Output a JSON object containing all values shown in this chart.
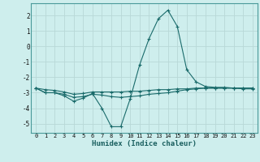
{
  "xlabel": "Humidex (Indice chaleur)",
  "bg_color": "#ceeeed",
  "grid_color": "#b8d8d7",
  "line_color": "#1a6b6b",
  "x_values": [
    0,
    1,
    2,
    3,
    4,
    5,
    6,
    7,
    8,
    9,
    10,
    11,
    12,
    13,
    14,
    15,
    16,
    17,
    18,
    19,
    20,
    21,
    22,
    23
  ],
  "series1": [
    -2.7,
    -3.0,
    -3.0,
    -3.2,
    -3.55,
    -3.35,
    -3.05,
    -4.0,
    -5.2,
    -5.2,
    -3.4,
    -1.2,
    0.5,
    1.8,
    2.35,
    1.3,
    -1.5,
    -2.3,
    -2.6,
    -2.65,
    -2.65,
    -2.7,
    -2.75,
    -2.75
  ],
  "series2": [
    -2.7,
    -3.0,
    -3.0,
    -3.1,
    -3.3,
    -3.25,
    -3.1,
    -3.15,
    -3.25,
    -3.3,
    -3.25,
    -3.2,
    -3.1,
    -3.05,
    -3.0,
    -2.9,
    -2.8,
    -2.75,
    -2.7,
    -2.7,
    -2.7,
    -2.7,
    -2.7,
    -2.7
  ],
  "series3": [
    -2.7,
    -2.8,
    -2.85,
    -2.95,
    -3.1,
    -3.05,
    -2.95,
    -2.95,
    -2.95,
    -2.95,
    -2.9,
    -2.9,
    -2.85,
    -2.8,
    -2.8,
    -2.75,
    -2.75,
    -2.7,
    -2.7,
    -2.7,
    -2.7,
    -2.7,
    -2.7,
    -2.7
  ],
  "ylim": [
    -5.6,
    2.8
  ],
  "xlim": [
    -0.5,
    23.5
  ],
  "yticks": [
    -5,
    -4,
    -3,
    -2,
    -1,
    0,
    1,
    2
  ],
  "xticks": [
    0,
    1,
    2,
    3,
    4,
    5,
    6,
    7,
    8,
    9,
    10,
    11,
    12,
    13,
    14,
    15,
    16,
    17,
    18,
    19,
    20,
    21,
    22,
    23
  ]
}
